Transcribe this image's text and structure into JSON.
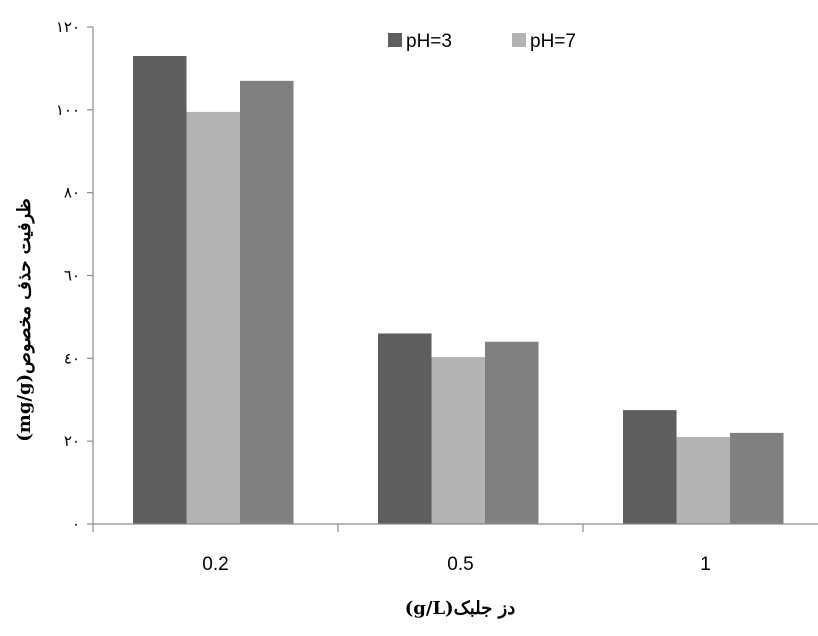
{
  "chart_data": {
    "type": "bar",
    "categories": [
      "0.2",
      "0.5",
      "1"
    ],
    "series": [
      {
        "name": "pH=3",
        "values": [
          113,
          46,
          27.5
        ],
        "color": "#5e5e5e"
      },
      {
        "name": "pH=7",
        "values": [
          99.5,
          40.3,
          21
        ],
        "color": "#b3b3b3"
      },
      {
        "name": "",
        "values": [
          107,
          44,
          22
        ],
        "color": "#808080"
      }
    ],
    "y_ticks": [
      {
        "value": 0,
        "label": "٠"
      },
      {
        "value": 20,
        "label": "٢٠"
      },
      {
        "value": 40,
        "label": "٤٠"
      },
      {
        "value": 60,
        "label": "٦٠"
      },
      {
        "value": 80,
        "label": "٨٠"
      },
      {
        "value": 100,
        "label": "١٠٠"
      },
      {
        "value": 120,
        "label": "١٢٠"
      }
    ],
    "ylim": [
      0,
      120
    ],
    "xlabel": "دز جلبک(g/L)",
    "ylabel": "ظرفیت حذف مخصوص(mg/g)",
    "grid": false,
    "legend_position": "top-right"
  }
}
